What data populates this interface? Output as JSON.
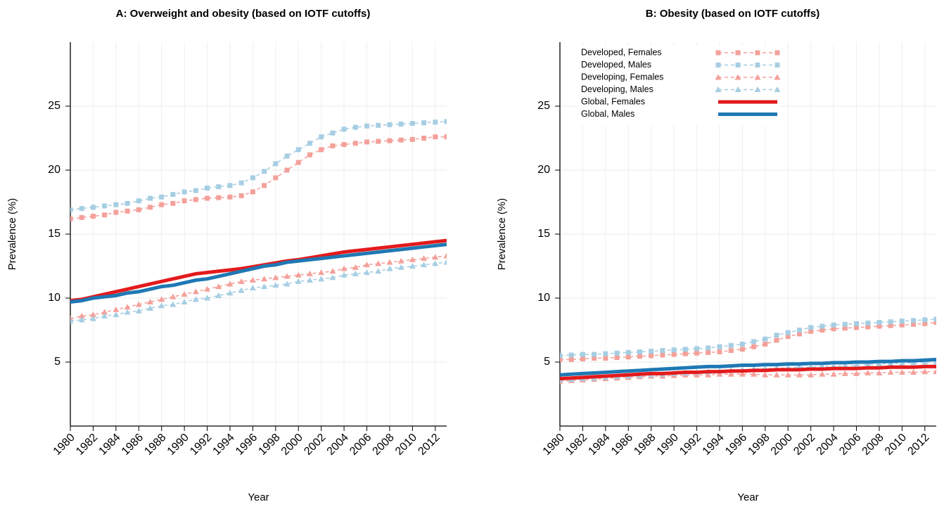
{
  "chart_data": [
    {
      "type": "line",
      "title": "A: Overweight and obesity (based on IOTF cutoffs)",
      "xlabel": "Year",
      "ylabel": "Prevalence (%)",
      "x": [
        1980,
        1981,
        1982,
        1983,
        1984,
        1985,
        1986,
        1987,
        1988,
        1989,
        1990,
        1991,
        1992,
        1993,
        1994,
        1995,
        1996,
        1997,
        1998,
        1999,
        2000,
        2001,
        2002,
        2003,
        2004,
        2005,
        2006,
        2007,
        2008,
        2009,
        2010,
        2011,
        2012,
        2013
      ],
      "xlim": [
        1980,
        2013
      ],
      "xticks": [
        1980,
        1982,
        1984,
        1986,
        1988,
        1990,
        1992,
        1994,
        1996,
        1998,
        2000,
        2002,
        2004,
        2006,
        2008,
        2010,
        2012
      ],
      "ylim": [
        0,
        30
      ],
      "yticks": [
        5,
        10,
        15,
        20,
        25
      ],
      "grid": true,
      "series": [
        {
          "color": "#f4a09a",
          "marker": "square",
          "dashed": true,
          "width": 1.5,
          "values": [
            16.2,
            16.3,
            16.4,
            16.5,
            16.7,
            16.8,
            16.9,
            17.1,
            17.3,
            17.4,
            17.6,
            17.7,
            17.8,
            17.85,
            17.9,
            18.0,
            18.3,
            18.8,
            19.4,
            20.0,
            20.6,
            21.2,
            21.6,
            21.9,
            22.0,
            22.1,
            22.2,
            22.25,
            22.3,
            22.35,
            22.4,
            22.5,
            22.6,
            22.6
          ]
        },
        {
          "color": "#a6cee3",
          "marker": "square",
          "dashed": true,
          "width": 1.5,
          "values": [
            16.9,
            17.0,
            17.1,
            17.2,
            17.3,
            17.4,
            17.6,
            17.8,
            17.9,
            18.1,
            18.3,
            18.4,
            18.6,
            18.7,
            18.8,
            19.0,
            19.4,
            19.9,
            20.5,
            21.1,
            21.6,
            22.1,
            22.6,
            22.9,
            23.2,
            23.35,
            23.45,
            23.5,
            23.55,
            23.6,
            23.65,
            23.7,
            23.75,
            23.8
          ]
        },
        {
          "color": "#f4a09a",
          "marker": "triangle",
          "dashed": true,
          "width": 1.5,
          "values": [
            8.4,
            8.6,
            8.7,
            8.9,
            9.1,
            9.3,
            9.5,
            9.7,
            9.9,
            10.1,
            10.3,
            10.5,
            10.7,
            10.9,
            11.1,
            11.3,
            11.4,
            11.5,
            11.6,
            11.7,
            11.8,
            11.9,
            12.0,
            12.1,
            12.3,
            12.4,
            12.6,
            12.7,
            12.8,
            12.9,
            13.0,
            13.1,
            13.2,
            13.3
          ]
        },
        {
          "color": "#a6cee3",
          "marker": "triangle",
          "dashed": true,
          "width": 1.5,
          "values": [
            8.2,
            8.3,
            8.4,
            8.6,
            8.7,
            8.9,
            9.0,
            9.2,
            9.4,
            9.5,
            9.7,
            9.9,
            10.0,
            10.2,
            10.4,
            10.6,
            10.8,
            10.9,
            11.0,
            11.1,
            11.3,
            11.4,
            11.5,
            11.6,
            11.8,
            11.9,
            12.0,
            12.1,
            12.3,
            12.4,
            12.5,
            12.6,
            12.7,
            12.8
          ]
        },
        {
          "color": "#e31a1c",
          "marker": "none",
          "dashed": false,
          "width": 5,
          "values": [
            9.8,
            9.9,
            10.1,
            10.3,
            10.5,
            10.7,
            10.9,
            11.1,
            11.3,
            11.5,
            11.7,
            11.9,
            12.0,
            12.1,
            12.2,
            12.3,
            12.45,
            12.6,
            12.75,
            12.9,
            13.0,
            13.15,
            13.3,
            13.45,
            13.6,
            13.7,
            13.8,
            13.9,
            14.0,
            14.1,
            14.2,
            14.3,
            14.4,
            14.5
          ]
        },
        {
          "color": "#1f78b4",
          "marker": "none",
          "dashed": false,
          "width": 5,
          "values": [
            9.7,
            9.8,
            10.0,
            10.1,
            10.2,
            10.4,
            10.5,
            10.7,
            10.9,
            11.0,
            11.2,
            11.4,
            11.5,
            11.7,
            11.9,
            12.1,
            12.3,
            12.5,
            12.6,
            12.8,
            12.9,
            13.0,
            13.1,
            13.2,
            13.3,
            13.4,
            13.5,
            13.6,
            13.7,
            13.8,
            13.9,
            14.0,
            14.1,
            14.2
          ]
        }
      ]
    },
    {
      "type": "line",
      "title": "B: Obesity (based on IOTF cutoffs)",
      "xlabel": "Year",
      "ylabel": "Prevalence (%)",
      "legend": "top-left",
      "x": [
        1980,
        1981,
        1982,
        1983,
        1984,
        1985,
        1986,
        1987,
        1988,
        1989,
        1990,
        1991,
        1992,
        1993,
        1994,
        1995,
        1996,
        1997,
        1998,
        1999,
        2000,
        2001,
        2002,
        2003,
        2004,
        2005,
        2006,
        2007,
        2008,
        2009,
        2010,
        2011,
        2012,
        2013
      ],
      "xlim": [
        1980,
        2013
      ],
      "xticks": [
        1980,
        1982,
        1984,
        1986,
        1988,
        1990,
        1992,
        1994,
        1996,
        1998,
        2000,
        2002,
        2004,
        2006,
        2008,
        2010,
        2012
      ],
      "ylim": [
        0,
        30
      ],
      "yticks": [
        5,
        10,
        15,
        20,
        25
      ],
      "grid": true,
      "series": [
        {
          "name": "Developed, Females",
          "color": "#f4a09a",
          "marker": "square",
          "dashed": true,
          "width": 1.5,
          "values": [
            5.2,
            5.2,
            5.25,
            5.3,
            5.3,
            5.35,
            5.4,
            5.45,
            5.5,
            5.55,
            5.6,
            5.65,
            5.7,
            5.75,
            5.8,
            5.9,
            6.0,
            6.2,
            6.4,
            6.7,
            7.0,
            7.2,
            7.4,
            7.5,
            7.6,
            7.65,
            7.7,
            7.75,
            7.8,
            7.85,
            7.9,
            7.95,
            8.0,
            8.1
          ]
        },
        {
          "name": "Developed, Males",
          "color": "#a6cee3",
          "marker": "square",
          "dashed": true,
          "width": 1.5,
          "values": [
            5.5,
            5.55,
            5.6,
            5.6,
            5.65,
            5.7,
            5.75,
            5.8,
            5.85,
            5.9,
            5.95,
            6.0,
            6.05,
            6.1,
            6.2,
            6.3,
            6.4,
            6.6,
            6.8,
            7.1,
            7.3,
            7.5,
            7.7,
            7.8,
            7.9,
            7.95,
            8.0,
            8.05,
            8.1,
            8.15,
            8.2,
            8.25,
            8.3,
            8.35
          ]
        },
        {
          "name": "Developing, Females",
          "color": "#f4a09a",
          "marker": "triangle",
          "dashed": true,
          "width": 1.5,
          "values": [
            3.5,
            3.55,
            3.6,
            3.65,
            3.7,
            3.75,
            3.8,
            3.85,
            3.9,
            3.9,
            3.95,
            4.0,
            4.0,
            4.0,
            4.05,
            4.05,
            4.05,
            4.05,
            4.0,
            4.0,
            4.0,
            4.0,
            4.0,
            4.05,
            4.05,
            4.1,
            4.1,
            4.15,
            4.15,
            4.2,
            4.2,
            4.2,
            4.25,
            4.25
          ]
        },
        {
          "name": "Developing, Males",
          "color": "#a6cee3",
          "marker": "triangle",
          "dashed": true,
          "width": 1.5,
          "values": [
            3.6,
            3.65,
            3.7,
            3.75,
            3.8,
            3.85,
            3.9,
            3.95,
            4.0,
            4.05,
            4.1,
            4.15,
            4.2,
            4.25,
            4.3,
            4.35,
            4.4,
            4.45,
            4.5,
            4.5,
            4.55,
            4.6,
            4.6,
            4.65,
            4.7,
            4.7,
            4.75,
            4.8,
            4.85,
            4.9,
            4.9,
            4.95,
            5.0,
            5.0
          ]
        },
        {
          "name": "Global, Females",
          "color": "#e31a1c",
          "marker": "none",
          "dashed": false,
          "width": 5,
          "values": [
            3.7,
            3.75,
            3.8,
            3.85,
            3.9,
            3.95,
            4.0,
            4.05,
            4.1,
            4.1,
            4.15,
            4.2,
            4.2,
            4.25,
            4.25,
            4.3,
            4.3,
            4.35,
            4.35,
            4.4,
            4.4,
            4.4,
            4.45,
            4.45,
            4.5,
            4.5,
            4.5,
            4.55,
            4.55,
            4.6,
            4.6,
            4.6,
            4.65,
            4.65
          ]
        },
        {
          "name": "Global, Males",
          "color": "#1f78b4",
          "marker": "none",
          "dashed": false,
          "width": 5,
          "values": [
            4.0,
            4.05,
            4.1,
            4.15,
            4.2,
            4.25,
            4.3,
            4.35,
            4.4,
            4.45,
            4.5,
            4.55,
            4.6,
            4.65,
            4.65,
            4.7,
            4.75,
            4.75,
            4.8,
            4.8,
            4.85,
            4.85,
            4.9,
            4.9,
            4.95,
            4.95,
            5.0,
            5.0,
            5.05,
            5.05,
            5.1,
            5.1,
            5.15,
            5.2
          ]
        }
      ]
    }
  ]
}
